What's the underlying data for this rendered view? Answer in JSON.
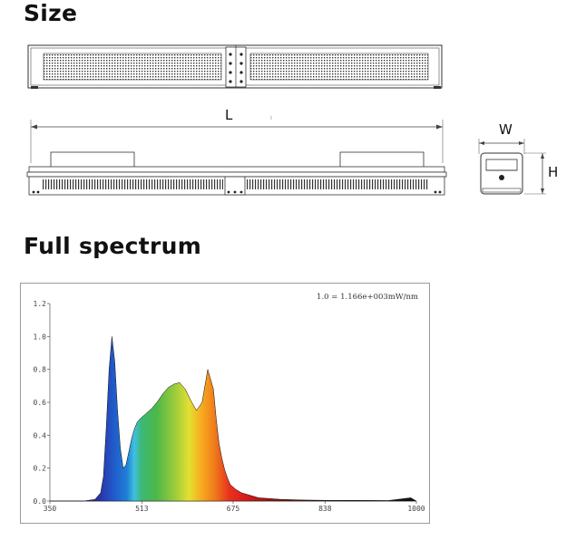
{
  "sections": {
    "size_title": "Size",
    "spectrum_title": "Full spectrum"
  },
  "dimensions": {
    "length_label": "L",
    "width_label": "W",
    "height_label": "H"
  },
  "chart_data": {
    "type": "area",
    "title": "",
    "annotation": "1.0 = 1.166e+003mW/nm",
    "xlabel": "",
    "ylabel": "",
    "xlim": [
      350,
      1000
    ],
    "ylim": [
      0,
      1.2
    ],
    "x_ticks": [
      350,
      513,
      675,
      838,
      1000
    ],
    "y_ticks": [
      0.0,
      0.2,
      0.4,
      0.6,
      0.8,
      1.0,
      1.2
    ],
    "y_tick_labels": [
      "0.0",
      "0.2",
      "0.4",
      "0.6",
      "0.8",
      "1.0",
      "1.2"
    ],
    "grid": false,
    "legend": "none",
    "series": [
      {
        "x": [
          350,
          380,
          410,
          430,
          440,
          445,
          450,
          455,
          460,
          465,
          470,
          475,
          480,
          485,
          490,
          495,
          500,
          505,
          510,
          520,
          530,
          540,
          550,
          560,
          570,
          580,
          590,
          600,
          610,
          620,
          630,
          640,
          645,
          650,
          655,
          660,
          665,
          670,
          680,
          690,
          700,
          710,
          720,
          740,
          760,
          780,
          800,
          850,
          900,
          950,
          990,
          1000
        ],
        "values": [
          0.0,
          0.0,
          0.0,
          0.01,
          0.05,
          0.15,
          0.45,
          0.8,
          1.0,
          0.85,
          0.55,
          0.32,
          0.2,
          0.22,
          0.3,
          0.38,
          0.44,
          0.48,
          0.5,
          0.53,
          0.56,
          0.6,
          0.65,
          0.69,
          0.71,
          0.72,
          0.68,
          0.61,
          0.55,
          0.6,
          0.8,
          0.68,
          0.5,
          0.35,
          0.26,
          0.19,
          0.14,
          0.1,
          0.07,
          0.05,
          0.04,
          0.03,
          0.02,
          0.015,
          0.01,
          0.008,
          0.006,
          0.004,
          0.004,
          0.003,
          0.02,
          0.0
        ]
      }
    ]
  }
}
